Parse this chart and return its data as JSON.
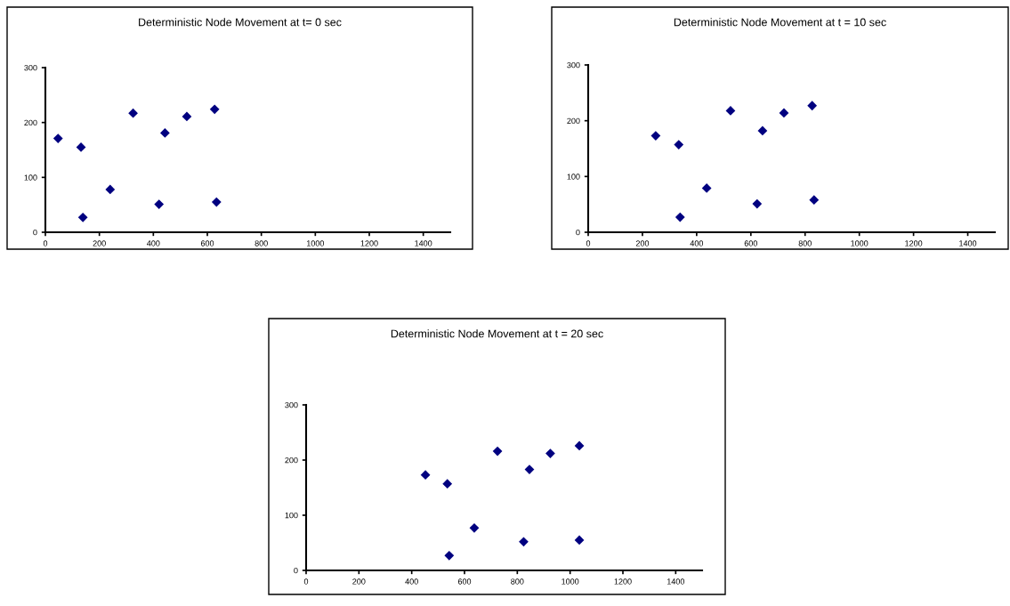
{
  "chart_data": [
    {
      "type": "scatter",
      "title": "Deterministic Node Movement at t= 0 sec",
      "marker": "diamond",
      "grid": false,
      "legend": false,
      "x": [
        47,
        132,
        139,
        240,
        325,
        421,
        443,
        524,
        627,
        634
      ],
      "values": [
        171,
        155,
        27,
        78,
        217,
        51,
        181,
        211,
        224,
        55
      ],
      "color": "#000080",
      "xlim": [
        0,
        1500
      ],
      "xticks": [
        0,
        200,
        400,
        600,
        800,
        1000,
        1200,
        1400
      ],
      "ylim": [
        0,
        300
      ],
      "yticks": [
        0,
        100,
        200,
        300
      ]
    },
    {
      "type": "scatter",
      "title": "Deterministic Node Movement at t = 10 sec",
      "marker": "diamond",
      "grid": false,
      "legend": false,
      "x": [
        249,
        334,
        339,
        437,
        525,
        623,
        643,
        722,
        826,
        833
      ],
      "values": [
        173,
        157,
        27,
        79,
        218,
        51,
        182,
        214,
        227,
        58
      ],
      "color": "#000080",
      "xlim": [
        0,
        1500
      ],
      "xticks": [
        0,
        200,
        400,
        600,
        800,
        1000,
        1200,
        1400
      ],
      "ylim": [
        0,
        300
      ],
      "yticks": [
        0,
        100,
        200,
        300
      ]
    },
    {
      "type": "scatter",
      "title": "Deterministic Node Movement at t = 20 sec",
      "marker": "diamond",
      "grid": false,
      "legend": false,
      "x": [
        452,
        535,
        542,
        637,
        725,
        824,
        846,
        925,
        1035,
        1035
      ],
      "values": [
        173,
        157,
        27,
        77,
        216,
        52,
        183,
        212,
        226,
        55
      ],
      "color": "#000080",
      "xlim": [
        0,
        1500
      ],
      "xticks": [
        0,
        200,
        400,
        600,
        800,
        1000,
        1200,
        1400
      ],
      "ylim": [
        0,
        300
      ],
      "yticks": [
        0,
        100,
        200,
        300
      ]
    }
  ]
}
